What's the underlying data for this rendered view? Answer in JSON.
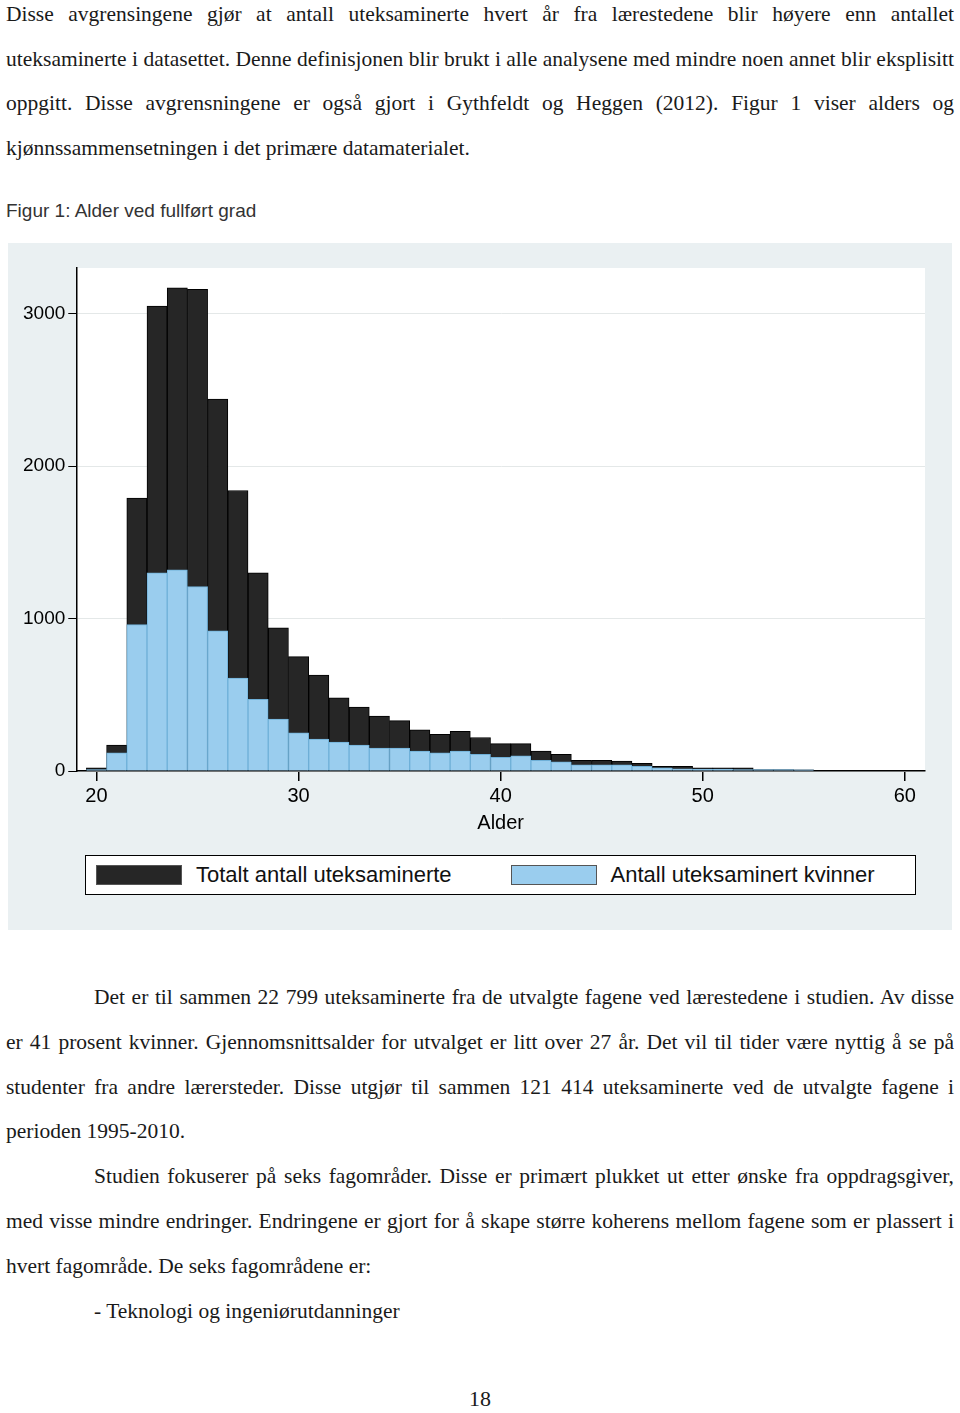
{
  "text_before": [
    "Disse avgrensingene gjør at antall uteksaminerte hvert år fra lærestedene blir høyere enn antallet uteksaminerte i datasettet. Denne definisjonen blir brukt i alle analysene med mindre noen annet blir eksplisitt oppgitt. Disse avgrensningene er også gjort i Gythfeldt og Heggen (2012). Figur 1 viser alders og kjønnssammensetningen i det primære datamaterialet."
  ],
  "figure_caption": "Figur 1: Alder ved fullført grad",
  "chart_data": {
    "type": "histogram",
    "bins": [
      19.5,
      20.5,
      21.5,
      22.5,
      23.5,
      24.5,
      25.5,
      26.5,
      27.5,
      28.5,
      29.5,
      30.5,
      31.5,
      32.5,
      33.5,
      34.5,
      35.5,
      36.5,
      37.5,
      38.5,
      39.5,
      40.5,
      41.5,
      42.5,
      43.5,
      44.5,
      45.5,
      46.5,
      47.5,
      48.5,
      49.5,
      50.5,
      51.5,
      52.5,
      53.5,
      54.5,
      55.5
    ],
    "series": [
      {
        "name": "Totalt antall uteksaminerte",
        "color": "#262626",
        "values": [
          20,
          170,
          1790,
          3050,
          3170,
          3160,
          2440,
          1840,
          1300,
          940,
          750,
          630,
          480,
          420,
          360,
          330,
          270,
          240,
          260,
          220,
          180,
          180,
          130,
          110,
          70,
          70,
          65,
          50,
          30,
          30,
          20,
          20,
          20,
          10,
          10,
          8
        ]
      },
      {
        "name": "Antall uteksaminert kvinner",
        "color": "#9acdee",
        "values": [
          10,
          120,
          960,
          1300,
          1320,
          1210,
          920,
          610,
          470,
          340,
          250,
          210,
          190,
          170,
          150,
          150,
          130,
          120,
          130,
          110,
          90,
          100,
          70,
          60,
          40,
          40,
          40,
          30,
          20,
          15,
          12,
          12,
          10,
          10,
          10,
          8
        ]
      }
    ],
    "x_label": "Alder",
    "xlim": [
      19,
      61
    ],
    "xticks": [
      20,
      30,
      40,
      50,
      60
    ],
    "ylim": [
      0,
      3300
    ],
    "yticks": [
      0,
      1000,
      2000,
      3000
    ],
    "stacked": false,
    "grid": true,
    "legend": "bottom"
  },
  "text_after": [
    "Det er til sammen 22 799 uteksaminerte fra de utvalgte fagene ved lærestedene i studien. Av disse er 41 prosent kvinner. Gjennomsnittsalder for utvalget er litt over 27 år. Det vil til tider være nyttig å se på studenter fra andre lærersteder. Disse utgjør til sammen 121 414 uteksaminerte ved de utvalgte fagene i perioden 1995-2010.",
    "Studien fokuserer på seks fagområder. Disse er primært plukket ut etter ønske fra oppdragsgiver, med visse mindre endringer. Endringene er gjort for å skape større koherens mellom fagene som er plassert i hvert fagområde. De seks fagområdene er:",
    "- Teknologi og ingeniørutdanninger"
  ],
  "page_number": 18
}
